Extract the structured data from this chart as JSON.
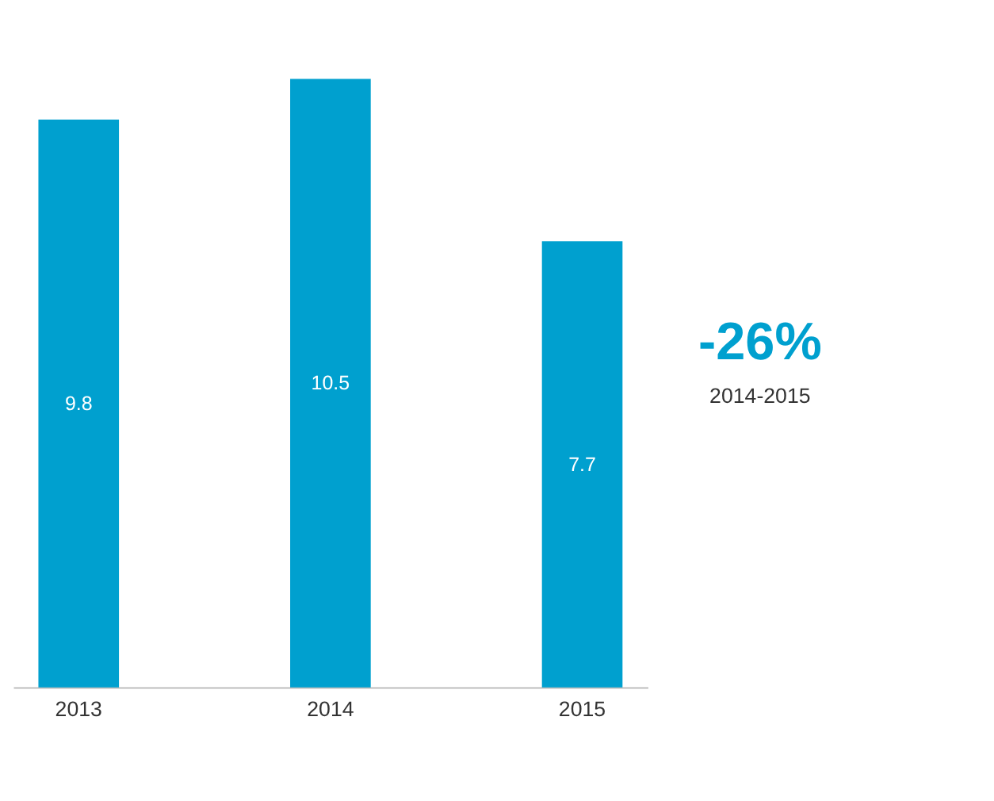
{
  "chart_data": {
    "type": "bar",
    "categories": [
      "2013",
      "2014",
      "2015"
    ],
    "values": [
      9.8,
      10.5,
      7.7
    ],
    "color": "#00a0cf",
    "data_labels": true,
    "annotations": [
      "-26%",
      "2014-2015"
    ]
  }
}
